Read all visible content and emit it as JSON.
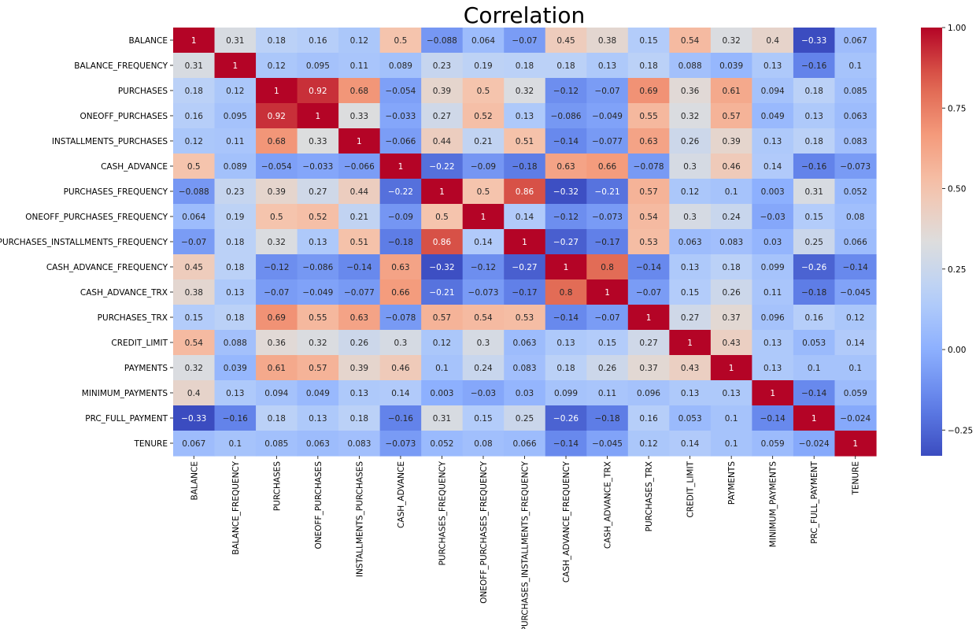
{
  "chart_data": {
    "type": "heatmap",
    "title": "Correlation",
    "colormap": "coolwarm",
    "vmin": -0.33,
    "vmax": 1.0,
    "annotated": true,
    "legend": "colorbar-right",
    "labels": [
      "BALANCE",
      "BALANCE_FREQUENCY",
      "PURCHASES",
      "ONEOFF_PURCHASES",
      "INSTALLMENTS_PURCHASES",
      "CASH_ADVANCE",
      "PURCHASES_FREQUENCY",
      "ONEOFF_PURCHASES_FREQUENCY",
      "PURCHASES_INSTALLMENTS_FREQUENCY",
      "CASH_ADVANCE_FREQUENCY",
      "CASH_ADVANCE_TRX",
      "PURCHASES_TRX",
      "CREDIT_LIMIT",
      "PAYMENTS",
      "MINIMUM_PAYMENTS",
      "PRC_FULL_PAYMENT",
      "TENURE"
    ],
    "matrix": [
      [
        1,
        0.31,
        0.18,
        0.16,
        0.12,
        0.5,
        -0.088,
        0.064,
        -0.07,
        0.45,
        0.38,
        0.15,
        0.54,
        0.32,
        0.4,
        -0.33,
        0.067
      ],
      [
        0.31,
        1,
        0.12,
        0.095,
        0.11,
        0.089,
        0.23,
        0.19,
        0.18,
        0.18,
        0.13,
        0.18,
        0.088,
        0.039,
        0.13,
        -0.16,
        0.1
      ],
      [
        0.18,
        0.12,
        1,
        0.92,
        0.68,
        -0.054,
        0.39,
        0.5,
        0.32,
        -0.12,
        -0.07,
        0.69,
        0.36,
        0.61,
        0.094,
        0.18,
        0.085
      ],
      [
        0.16,
        0.095,
        0.92,
        1,
        0.33,
        -0.033,
        0.27,
        0.52,
        0.13,
        -0.086,
        -0.049,
        0.55,
        0.32,
        0.57,
        0.049,
        0.13,
        0.063
      ],
      [
        0.12,
        0.11,
        0.68,
        0.33,
        1,
        -0.066,
        0.44,
        0.21,
        0.51,
        -0.14,
        -0.077,
        0.63,
        0.26,
        0.39,
        0.13,
        0.18,
        0.083
      ],
      [
        0.5,
        0.089,
        -0.054,
        -0.033,
        -0.066,
        1,
        -0.22,
        -0.09,
        -0.18,
        0.63,
        0.66,
        -0.078,
        0.3,
        0.46,
        0.14,
        -0.16,
        -0.073
      ],
      [
        -0.088,
        0.23,
        0.39,
        0.27,
        0.44,
        -0.22,
        1,
        0.5,
        0.86,
        -0.32,
        -0.21,
        0.57,
        0.12,
        0.1,
        0.003,
        0.31,
        0.052
      ],
      [
        0.064,
        0.19,
        0.5,
        0.52,
        0.21,
        -0.09,
        0.5,
        1,
        0.14,
        -0.12,
        -0.073,
        0.54,
        0.3,
        0.24,
        -0.03,
        0.15,
        0.08
      ],
      [
        -0.07,
        0.18,
        0.32,
        0.13,
        0.51,
        -0.18,
        0.86,
        0.14,
        1,
        -0.27,
        -0.17,
        0.53,
        0.063,
        0.083,
        0.03,
        0.25,
        0.066
      ],
      [
        0.45,
        0.18,
        -0.12,
        -0.086,
        -0.14,
        0.63,
        -0.32,
        -0.12,
        -0.27,
        1,
        0.8,
        -0.14,
        0.13,
        0.18,
        0.099,
        -0.26,
        -0.14
      ],
      [
        0.38,
        0.13,
        -0.07,
        -0.049,
        -0.077,
        0.66,
        -0.21,
        -0.073,
        -0.17,
        0.8,
        1,
        -0.07,
        0.15,
        0.26,
        0.11,
        -0.18,
        -0.045
      ],
      [
        0.15,
        0.18,
        0.69,
        0.55,
        0.63,
        -0.078,
        0.57,
        0.54,
        0.53,
        -0.14,
        -0.07,
        1,
        0.27,
        0.37,
        0.096,
        0.16,
        0.12
      ],
      [
        0.54,
        0.088,
        0.36,
        0.32,
        0.26,
        0.3,
        0.12,
        0.3,
        0.063,
        0.13,
        0.15,
        0.27,
        1,
        0.43,
        0.13,
        0.053,
        0.14
      ],
      [
        0.32,
        0.039,
        0.61,
        0.57,
        0.39,
        0.46,
        0.1,
        0.24,
        0.083,
        0.18,
        0.26,
        0.37,
        0.43,
        1,
        0.13,
        0.1,
        0.1
      ],
      [
        0.4,
        0.13,
        0.094,
        0.049,
        0.13,
        0.14,
        0.003,
        -0.03,
        0.03,
        0.099,
        0.11,
        0.096,
        0.13,
        0.13,
        1,
        -0.14,
        0.059
      ],
      [
        -0.33,
        -0.16,
        0.18,
        0.13,
        0.18,
        -0.16,
        0.31,
        0.15,
        0.25,
        -0.26,
        -0.18,
        0.16,
        0.053,
        0.1,
        -0.14,
        1,
        -0.024
      ],
      [
        0.067,
        0.1,
        0.085,
        0.063,
        0.083,
        -0.073,
        0.052,
        0.08,
        0.066,
        -0.14,
        -0.045,
        0.12,
        0.14,
        0.1,
        0.059,
        -0.024,
        1
      ]
    ],
    "colorbar_ticks": [
      {
        "value": 1.0,
        "label": "1.00"
      },
      {
        "value": 0.75,
        "label": "0.75"
      },
      {
        "value": 0.5,
        "label": "0.50"
      },
      {
        "value": 0.25,
        "label": "0.25"
      },
      {
        "value": 0.0,
        "label": "0.00"
      },
      {
        "value": -0.25,
        "label": "−0.25"
      }
    ]
  }
}
